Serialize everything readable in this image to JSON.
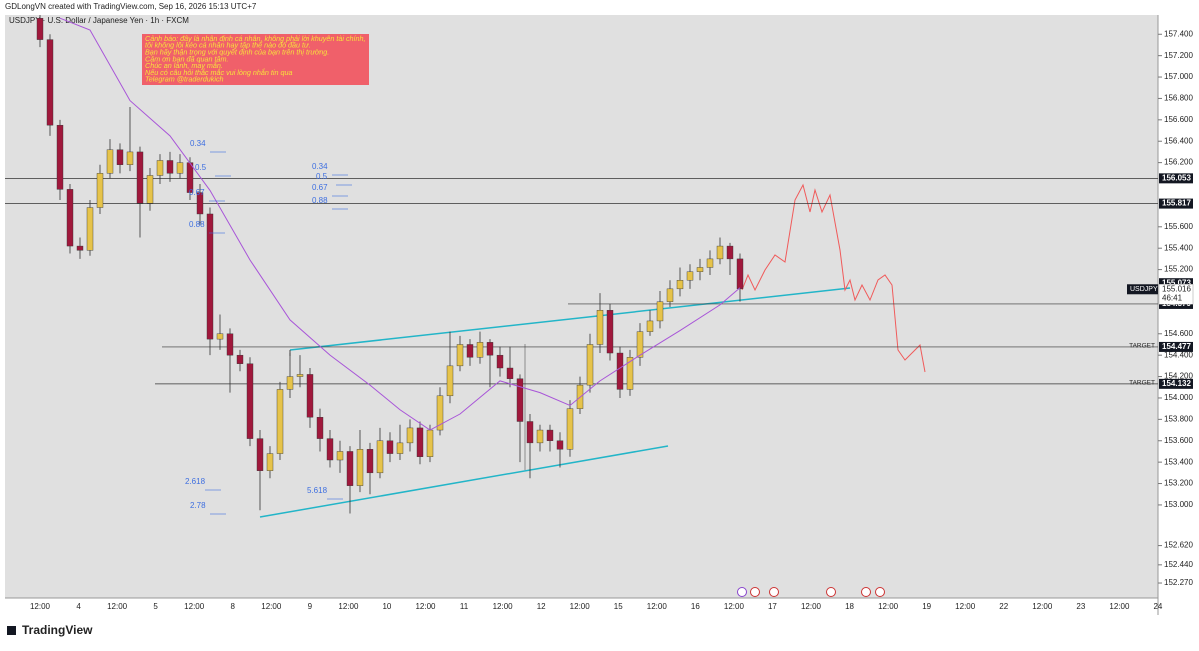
{
  "header": "GDLongVN created with TradingView.com, Sep 16, 2026 15:13 UTC+7",
  "footer": "TradingView",
  "chart_data": {
    "type": "candlestick",
    "title": "USDJPY · U.S. Dollar / Japanese Yen · 1h · FXCM",
    "up_color": "#e6c34a",
    "down_color": "#a0183c",
    "ma_color": "#a855d8",
    "ylim": [
      152.13,
      157.58
    ],
    "yticks": [
      {
        "value": 157.4,
        "label": "157.400"
      },
      {
        "value": 157.2,
        "label": "157.200"
      },
      {
        "value": 157,
        "label": "157.000"
      },
      {
        "value": 156.8,
        "label": "156.800"
      },
      {
        "value": 156.6,
        "label": "156.600"
      },
      {
        "value": 156.4,
        "label": "156.400"
      },
      {
        "value": 156.2,
        "label": "156.200"
      },
      {
        "value": 155.6,
        "label": "155.600"
      },
      {
        "value": 155.4,
        "label": "155.400"
      },
      {
        "value": 155.2,
        "label": "155.200"
      },
      {
        "value": 154.6,
        "label": "154.600"
      },
      {
        "value": 154.4,
        "label": "154.400"
      },
      {
        "value": 154.2,
        "label": "154.200"
      },
      {
        "value": 154,
        "label": "154.000"
      },
      {
        "value": 153.8,
        "label": "153.800"
      },
      {
        "value": 153.6,
        "label": "153.600"
      },
      {
        "value": 153.4,
        "label": "153.400"
      },
      {
        "value": 153.2,
        "label": "153.200"
      },
      {
        "value": 153,
        "label": "153.000"
      },
      {
        "value": 152.62,
        "label": "152.620"
      },
      {
        "value": 152.44,
        "label": "152.440"
      },
      {
        "value": 152.27,
        "label": "152.270"
      }
    ],
    "time_labels": [
      "12:00",
      "4",
      "12:00",
      "5",
      "12:00",
      "8",
      "12:00",
      "9",
      "12:00",
      "10",
      "12:00",
      "11",
      "12:00",
      "12",
      "12:00",
      "15",
      "12:00",
      "16",
      "12:00",
      "17",
      "12:00",
      "18",
      "12:00",
      "19",
      "12:00",
      "22",
      "12:00",
      "23",
      "12:00",
      "24"
    ],
    "candles": {
      "open": [
        157.55,
        157.35,
        156.55,
        155.95,
        155.42,
        155.38,
        155.78,
        156.1,
        156.32,
        156.18,
        156.3,
        155.82,
        156.08,
        156.22,
        156.1,
        156.2,
        155.92,
        155.72,
        154.55,
        154.6,
        154.4,
        154.32,
        153.62,
        153.32,
        153.48,
        154.08,
        154.2,
        154.22,
        153.82,
        153.62,
        153.42,
        153.5,
        153.18,
        153.52,
        153.3,
        153.6,
        153.48,
        153.58,
        153.72,
        153.45,
        153.7,
        154.02,
        154.3,
        154.5,
        154.38,
        154.52,
        154.4,
        154.28,
        154.18,
        153.78,
        153.58,
        153.7,
        153.6,
        153.52,
        153.9,
        154.12,
        154.5,
        154.82,
        154.42,
        154.08,
        154.38,
        154.62,
        154.72,
        154.9,
        155.02,
        155.1,
        155.18,
        155.22,
        155.3,
        155.42,
        155.3
      ],
      "high": [
        157.6,
        157.4,
        156.6,
        156.0,
        155.5,
        155.85,
        156.18,
        156.42,
        156.38,
        156.72,
        156.35,
        156.15,
        156.28,
        156.3,
        156.28,
        156.25,
        156.0,
        155.78,
        154.78,
        154.65,
        154.45,
        154.38,
        153.7,
        153.55,
        154.15,
        154.42,
        154.4,
        154.28,
        153.9,
        153.7,
        153.6,
        153.55,
        153.7,
        153.58,
        153.72,
        153.68,
        153.75,
        153.8,
        153.78,
        153.75,
        154.1,
        154.62,
        154.58,
        154.55,
        154.62,
        154.55,
        154.48,
        154.48,
        154.22,
        153.85,
        153.75,
        153.75,
        153.68,
        153.98,
        154.2,
        154.6,
        154.98,
        154.88,
        154.48,
        154.45,
        154.7,
        154.82,
        155.0,
        155.1,
        155.22,
        155.25,
        155.3,
        155.38,
        155.5,
        155.45,
        155.35
      ],
      "low": [
        157.28,
        156.45,
        155.85,
        155.35,
        155.3,
        155.33,
        155.72,
        156.05,
        156.1,
        156.12,
        155.5,
        155.75,
        156.0,
        156.02,
        156.05,
        155.85,
        155.62,
        154.4,
        154.45,
        154.05,
        154.25,
        153.55,
        152.95,
        153.25,
        153.42,
        154.0,
        154.1,
        153.72,
        153.5,
        153.35,
        153.3,
        152.92,
        153.12,
        153.1,
        153.25,
        153.4,
        153.42,
        153.5,
        153.38,
        153.4,
        153.65,
        153.95,
        154.25,
        154.3,
        154.32,
        154.1,
        154.2,
        154.1,
        153.4,
        153.25,
        153.5,
        153.5,
        153.35,
        153.45,
        153.85,
        154.05,
        154.42,
        154.35,
        154.0,
        154.02,
        154.3,
        154.58,
        154.65,
        154.85,
        154.95,
        155.02,
        155.1,
        155.15,
        155.25,
        155.15,
        154.9
      ],
      "close": [
        157.35,
        156.55,
        155.95,
        155.42,
        155.38,
        155.78,
        156.1,
        156.32,
        156.18,
        156.3,
        155.82,
        156.08,
        156.22,
        156.1,
        156.2,
        155.92,
        155.72,
        154.55,
        154.6,
        154.4,
        154.32,
        153.62,
        153.32,
        153.48,
        154.08,
        154.2,
        154.22,
        153.82,
        153.62,
        153.42,
        153.5,
        153.18,
        153.52,
        153.3,
        153.6,
        153.48,
        153.58,
        153.72,
        153.45,
        153.7,
        154.02,
        154.3,
        154.5,
        154.38,
        154.52,
        154.4,
        154.28,
        154.18,
        153.78,
        153.58,
        153.7,
        153.6,
        153.52,
        153.9,
        154.12,
        154.5,
        154.82,
        154.42,
        154.08,
        154.38,
        154.62,
        154.72,
        154.9,
        155.02,
        155.1,
        155.18,
        155.22,
        155.3,
        155.42,
        155.3,
        155.02
      ]
    },
    "ma": {
      "x": [
        2,
        5,
        9,
        13,
        17,
        21,
        25,
        29,
        33,
        36,
        39,
        42,
        46,
        50,
        53,
        56,
        60,
        64,
        68,
        70
      ],
      "values": [
        157.55,
        157.44,
        156.78,
        156.45,
        155.94,
        155.29,
        154.73,
        154.4,
        154.12,
        153.89,
        153.7,
        153.85,
        154.16,
        154.05,
        153.93,
        154.16,
        154.4,
        154.63,
        154.87,
        155.03
      ]
    },
    "levels": [
      {
        "value": 156.053,
        "label": "156.053"
      },
      {
        "value": 155.817,
        "label": "155.817"
      },
      {
        "value": 155.073,
        "label": "155.073"
      },
      {
        "value": 154.879,
        "label": "154.879"
      },
      {
        "value": 154.477,
        "label": "154.477",
        "tag": "TARGET"
      },
      {
        "value": 154.132,
        "label": "154.132",
        "tag": "TARGET"
      }
    ],
    "current": {
      "value": 155.016,
      "label": "155.016",
      "symbol": "USDJPY",
      "countdown": "46:41"
    },
    "fib_labels": [
      "0.34",
      "0.5",
      "0.67",
      "0.88",
      "0.34",
      "0.5",
      "0.67",
      "0.88",
      "2.618",
      "2.78",
      "5.618"
    ],
    "warning": [
      "Cảnh báo: đây là nhận định cá nhân, không phải lời khuyên tài chính,",
      "tôi không lôi kéo cá nhân hay tập thể nào đó đầu tư.",
      "Bạn hãy thận trọng với quyết định của bạn trên thị trường.",
      "Cảm ơn bạn đã quan tâm.",
      "Chúc an lành, may mắn.",
      "Nếu có câu hỏi thắc mắc vui lòng nhắn tin qua",
      "Telegram @traderdukich"
    ]
  }
}
